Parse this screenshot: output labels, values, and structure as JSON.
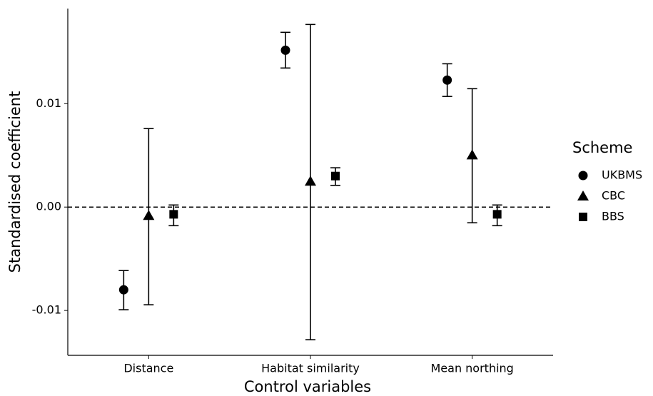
{
  "chart_data": {
    "type": "pointrange",
    "x_label": "Control variables",
    "y_label": "Standardised coefficient",
    "categories": [
      "Distance",
      "Habitat similarity",
      "Mean northing"
    ],
    "legend_title": "Scheme",
    "series": [
      {
        "name": "UKBMS",
        "marker": "circle",
        "color": "#000000",
        "values": [
          -0.008,
          0.01517,
          0.01228
        ],
        "lower": [
          -0.00993,
          0.01345,
          0.0107
        ],
        "upper": [
          -0.00614,
          0.0169,
          0.01386
        ]
      },
      {
        "name": "CBC",
        "marker": "triangle",
        "color": "#000000",
        "values": [
          -0.00083,
          0.00248,
          0.00503
        ],
        "lower": [
          -0.00945,
          -0.01283,
          -0.00152
        ],
        "upper": [
          0.00759,
          0.01766,
          0.01145
        ]
      },
      {
        "name": "BBS",
        "marker": "square",
        "color": "#000000",
        "values": [
          -0.0007,
          0.003,
          -0.0007
        ],
        "lower": [
          -0.0018,
          0.0021,
          -0.0018
        ],
        "upper": [
          0.0002,
          0.0038,
          0.0002
        ]
      }
    ],
    "reference_line": 0,
    "ylim": [
      -0.01434,
      0.0192
    ],
    "yticks": [
      {
        "value": -0.01,
        "label": "-0.01"
      },
      {
        "value": 0,
        "label": "0.00"
      },
      {
        "value": 0.01,
        "label": "0.01"
      }
    ],
    "grid": false
  }
}
